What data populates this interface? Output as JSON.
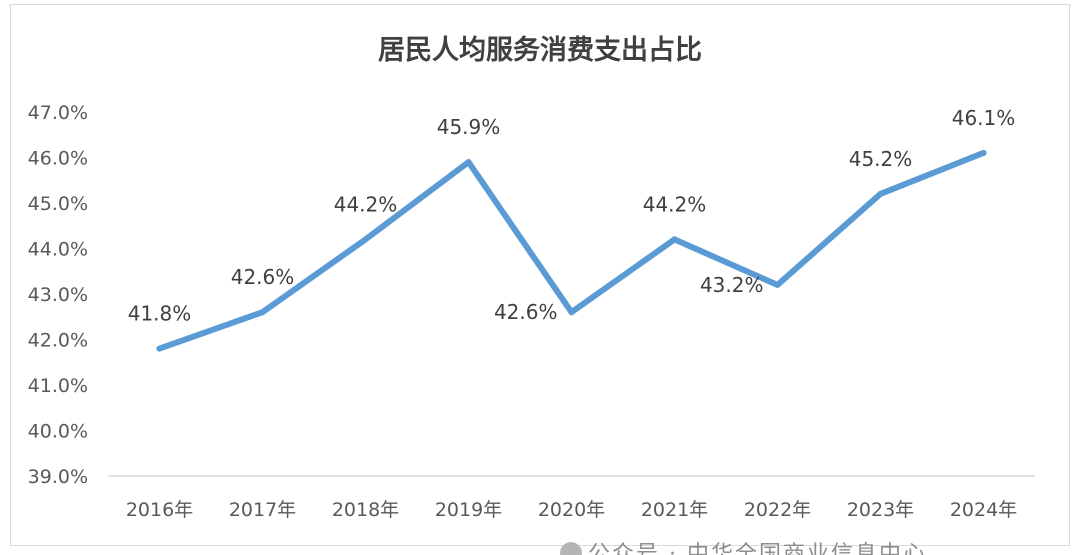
{
  "chart_data": {
    "type": "line",
    "title": "居民人均服务消费支出占比",
    "categories": [
      "2016年",
      "2017年",
      "2018年",
      "2019年",
      "2020年",
      "2021年",
      "2022年",
      "2023年",
      "2024年"
    ],
    "values": [
      41.8,
      42.6,
      44.2,
      45.9,
      42.6,
      44.2,
      43.2,
      45.2,
      46.1
    ],
    "value_labels": [
      "41.8%",
      "42.6%",
      "44.2%",
      "45.9%",
      "42.6%",
      "44.2%",
      "43.2%",
      "45.2%",
      "46.1%"
    ],
    "ylim": [
      39.0,
      47.0
    ],
    "y_ticks": [
      "39.0%",
      "40.0%",
      "41.0%",
      "42.0%",
      "43.0%",
      "44.0%",
      "45.0%",
      "46.0%",
      "47.0%"
    ],
    "xlabel": "",
    "ylabel": "",
    "grid": false,
    "legend": "none",
    "line_color": "#5b9bd5"
  },
  "watermark": "公众号 · 中华全国商业信息中心"
}
